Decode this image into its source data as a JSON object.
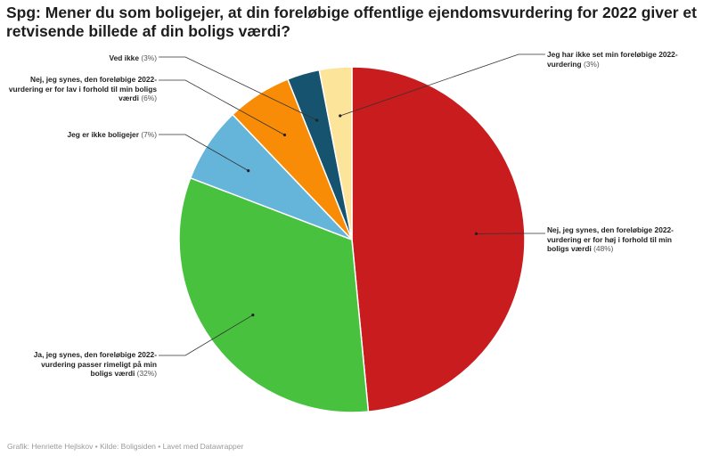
{
  "title": "Spg: Mener du som boligejer, at din foreløbige offentlige ejendomsvurdering for 2022 giver et retvisende billede af din boligs værdi?",
  "footer": "Grafik: Henriette Hejlskov • Kilde: Boligsiden • Lavet med Datawrapper",
  "chart_data": {
    "type": "pie",
    "title": "Spg: Mener du som boligejer, at din foreløbige offentlige ejendomsvurdering for 2022 giver et retvisende billede af din boligs værdi?",
    "unit": "%",
    "slices": [
      {
        "label": "Nej, jeg synes, den foreløbige 2022-vurdering er for høj i forhold til min boligs værdi",
        "pct_text": "(48%)",
        "value": 48,
        "color": "#c81c1e"
      },
      {
        "label": "Ja, jeg synes, den foreløbige 2022-vurdering passer rimeligt på min boligs værdi",
        "pct_text": "(32%)",
        "value": 32,
        "color": "#48c13f"
      },
      {
        "label": "Jeg er ikke boligejer",
        "pct_text": "(7%)",
        "value": 7,
        "color": "#64b5d9"
      },
      {
        "label": "Nej, jeg synes, den foreløbige 2022-vurdering er for lav i forhold til min boligs værdi",
        "pct_text": "(6%)",
        "value": 6,
        "color": "#f98c06"
      },
      {
        "label": "Ved ikke",
        "pct_text": "(3%)",
        "value": 3,
        "color": "#15536f"
      },
      {
        "label": "Jeg har ikke set min foreløbige 2022-vurdering",
        "pct_text": "(3%)",
        "value": 3,
        "color": "#fde49b"
      }
    ]
  }
}
